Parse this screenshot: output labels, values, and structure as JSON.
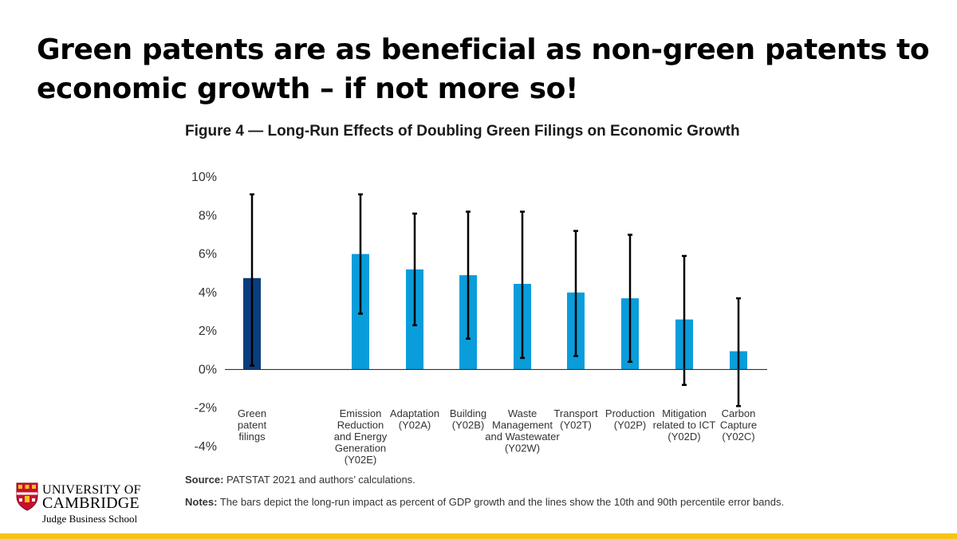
{
  "slide": {
    "title": "Green patents are as beneficial as non-green patents to economic growth – if not more so!"
  },
  "colors": {
    "dark_bar": "#0a3d7d",
    "light_bar": "#0a9ddb",
    "error_bar": "#000000",
    "accent_bar": "#f5c418"
  },
  "chart_data": {
    "type": "bar",
    "title": "Figure 4 — Long-Run Effects of Doubling Green Filings on Economic Growth",
    "xlabel": "",
    "ylabel": "",
    "ylim": [
      -4,
      10
    ],
    "y_ticks": [
      {
        "value": 10,
        "label": "10%"
      },
      {
        "value": 8,
        "label": "8%"
      },
      {
        "value": 6,
        "label": "6%"
      },
      {
        "value": 4,
        "label": "4%"
      },
      {
        "value": 2,
        "label": "2%"
      },
      {
        "value": 0,
        "label": "0%"
      },
      {
        "value": -2,
        "label": "-2%"
      },
      {
        "value": -4,
        "label": "-4%"
      }
    ],
    "grid": false,
    "categories": [
      {
        "label": [
          "Green",
          "patent",
          "filings"
        ],
        "value": 4.75,
        "low": 0.2,
        "high": 9.1,
        "color": "#0a3d7d"
      },
      {
        "label": [
          "Emission",
          "Reduction",
          "and Energy",
          "Generation",
          "(Y02E)"
        ],
        "value": 6.0,
        "low": 2.9,
        "high": 9.1,
        "color": "#0a9ddb"
      },
      {
        "label": [
          "Adaptation",
          "(Y02A)"
        ],
        "value": 5.2,
        "low": 2.3,
        "high": 8.1,
        "color": "#0a9ddb"
      },
      {
        "label": [
          "Building",
          "(Y02B)"
        ],
        "value": 4.9,
        "low": 1.6,
        "high": 8.2,
        "color": "#0a9ddb"
      },
      {
        "label": [
          "Waste",
          "Management",
          "and Wastewater",
          "(Y02W)"
        ],
        "value": 4.45,
        "low": 0.6,
        "high": 8.2,
        "color": "#0a9ddb"
      },
      {
        "label": [
          "Transport",
          "(Y02T)"
        ],
        "value": 4.0,
        "low": 0.7,
        "high": 7.2,
        "color": "#0a9ddb"
      },
      {
        "label": [
          "Production",
          "(Y02P)"
        ],
        "value": 3.7,
        "low": 0.4,
        "high": 7.0,
        "color": "#0a9ddb"
      },
      {
        "label": [
          "Mitigation",
          "related to ICT",
          "(Y02D)"
        ],
        "value": 2.6,
        "low": -0.8,
        "high": 5.9,
        "color": "#0a9ddb"
      },
      {
        "label": [
          "Carbon",
          "Capture",
          "(Y02C)"
        ],
        "value": 0.95,
        "low": -1.9,
        "high": 3.7,
        "color": "#0a9ddb"
      }
    ],
    "source_label": "Source:",
    "source_text": " PATSTAT 2021 and authors’ calculations.",
    "notes_label": "Notes:",
    "notes_text": " The bars depict the long-run impact as percent of GDP growth and the lines show the 10th and 90th percentile error bands."
  },
  "logo": {
    "line1": "UNIVERSITY OF",
    "line2": "CAMBRIDGE",
    "line3": "Judge Business School"
  }
}
